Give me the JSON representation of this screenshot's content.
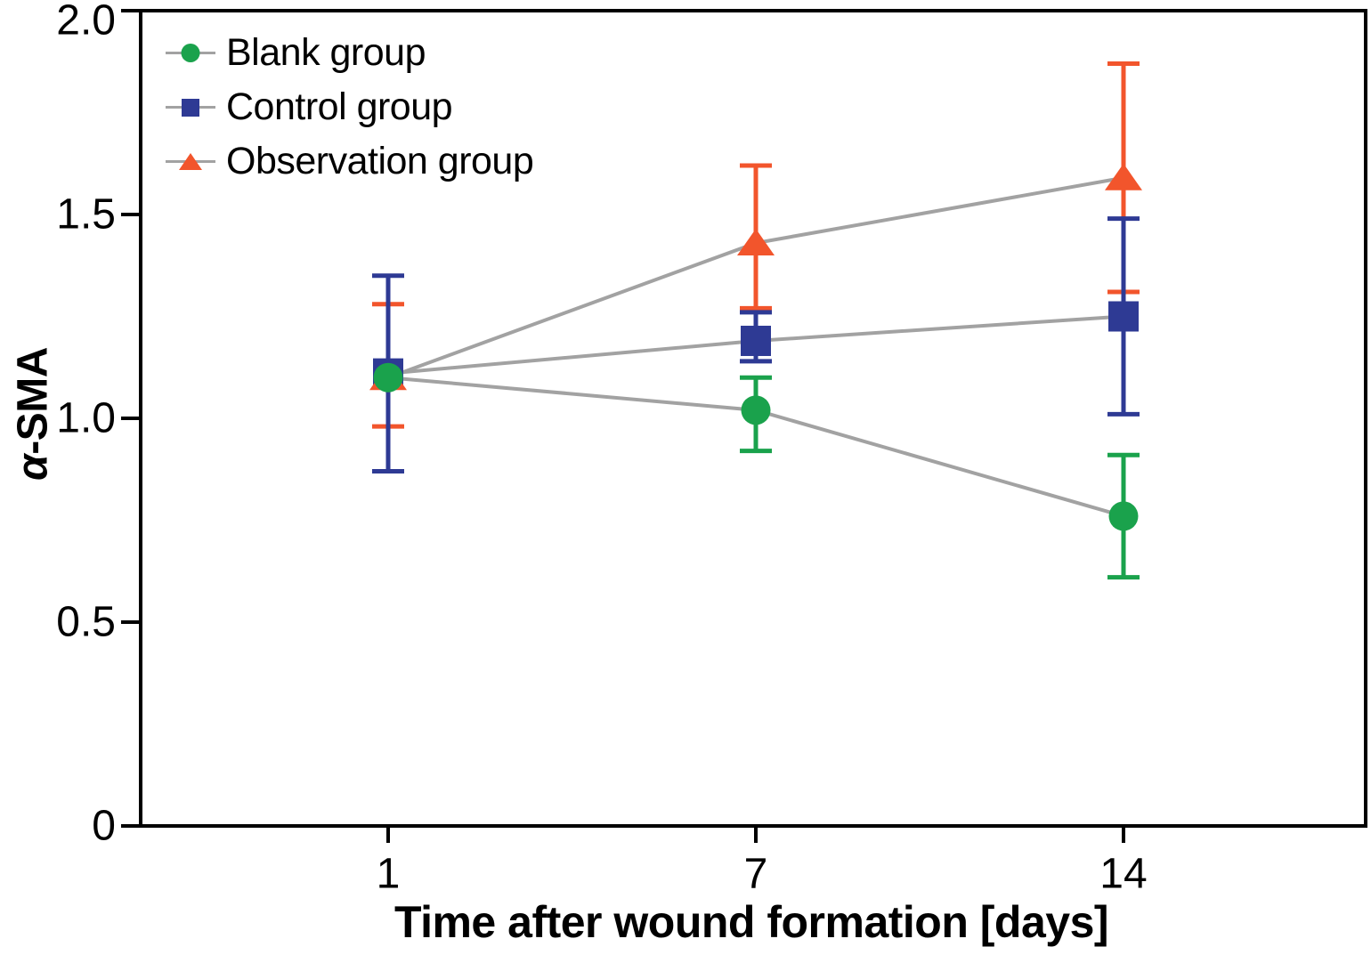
{
  "chart_data": {
    "type": "line",
    "title": "",
    "xlabel": "Time after wound formation [days]",
    "ylabel": "α-SMA",
    "x_tick_labels": [
      "1",
      "7",
      "14"
    ],
    "x_values": [
      1,
      7,
      14
    ],
    "ylim": [
      0,
      2.0
    ],
    "y_ticks": [
      0,
      0.5,
      1.0,
      1.5,
      2.0
    ],
    "y_tick_labels": [
      "0",
      "0.5",
      "1.0",
      "1.5",
      "2.0"
    ],
    "grid": false,
    "legend_position": "top-left-inside",
    "error_bars": true,
    "connector_line_color": "#a2a2a2",
    "axis_color": "#000000",
    "series": [
      {
        "name": "Blank group",
        "marker": "circle",
        "color": "#1aa24c",
        "values": [
          1.1,
          1.02,
          0.76
        ],
        "err_low": [
          null,
          0.92,
          0.61
        ],
        "err_high": [
          null,
          1.1,
          0.91
        ]
      },
      {
        "name": "Control group",
        "marker": "square",
        "color": "#2e3a94",
        "values": [
          1.11,
          1.19,
          1.25
        ],
        "err_low": [
          0.87,
          1.14,
          1.01
        ],
        "err_high": [
          1.35,
          1.26,
          1.49
        ]
      },
      {
        "name": "Observation group",
        "marker": "triangle",
        "color": "#f2552c",
        "values": [
          1.1,
          1.43,
          1.59
        ],
        "err_low": [
          0.98,
          1.27,
          1.31
        ],
        "err_high": [
          1.28,
          1.62,
          1.87
        ]
      }
    ]
  },
  "axes": {
    "y_label_alpha": "α",
    "y_label_rest": "-SMA",
    "x_label": "Time after wound formation [days]"
  }
}
